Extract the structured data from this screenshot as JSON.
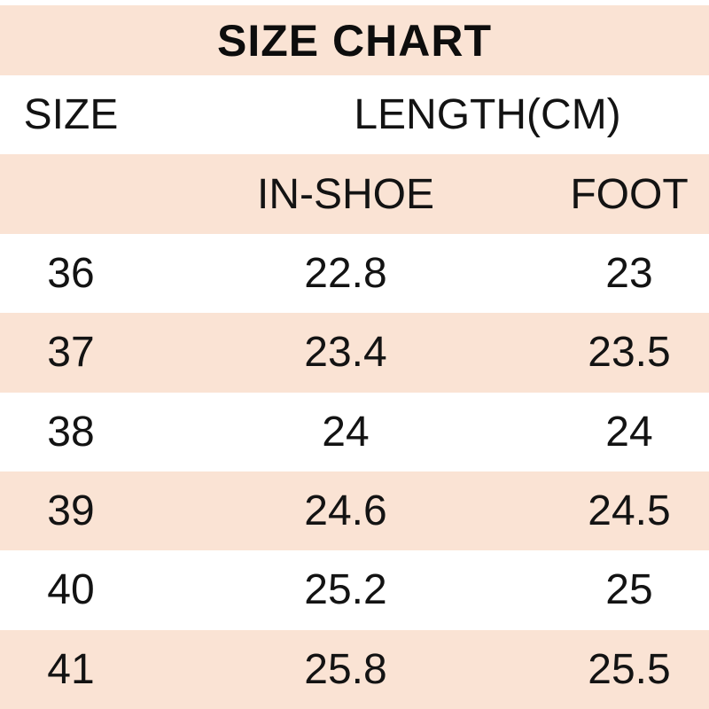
{
  "colors": {
    "stripe": "#FAE3D4",
    "background": "#FFFFFF",
    "text": "#131313"
  },
  "chart_data": {
    "type": "table",
    "title": "SIZE CHART",
    "group_header": {
      "size": "SIZE",
      "length": "LENGTH(CM)"
    },
    "sub_header": {
      "in_shoe": "IN-SHOE",
      "foot": "FOOT"
    },
    "columns": [
      "SIZE",
      "IN-SHOE",
      "FOOT"
    ],
    "rows": [
      {
        "size": "36",
        "in_shoe": "22.8",
        "foot": "23"
      },
      {
        "size": "37",
        "in_shoe": "23.4",
        "foot": "23.5"
      },
      {
        "size": "38",
        "in_shoe": "24",
        "foot": "24"
      },
      {
        "size": "39",
        "in_shoe": "24.6",
        "foot": "24.5"
      },
      {
        "size": "40",
        "in_shoe": "25.2",
        "foot": "25"
      },
      {
        "size": "41",
        "in_shoe": "25.8",
        "foot": "25.5"
      }
    ]
  }
}
